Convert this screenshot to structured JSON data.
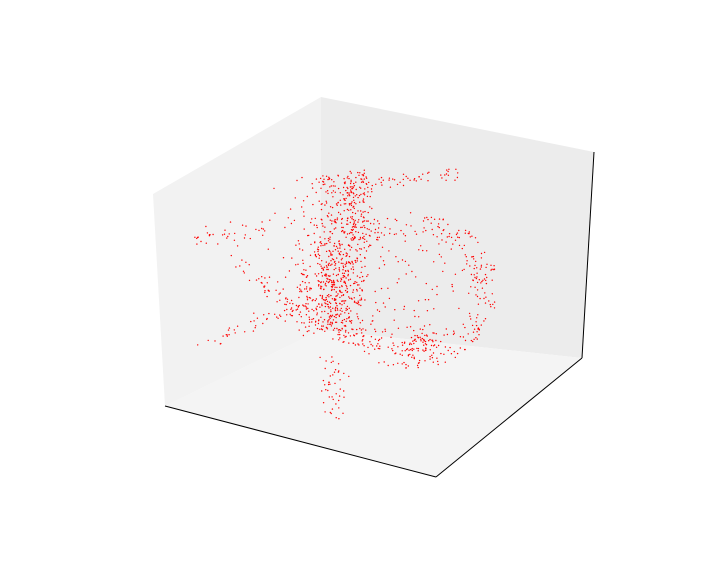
{
  "chart_data": {
    "type": "scatter",
    "projection": "3d",
    "title": "",
    "xlabel": "",
    "ylabel": "",
    "zlabel": "",
    "axis_ticks": "hidden",
    "grid": false,
    "legend": "none",
    "marker_color": "#ff0000",
    "pane_colors": {
      "left": "#f2f2f2",
      "back": "#ececec",
      "floor": "#f4f4f4"
    },
    "spine_color": "#000000",
    "series": [
      {
        "description_free": true,
        "point_count": 1400
      }
    ]
  }
}
